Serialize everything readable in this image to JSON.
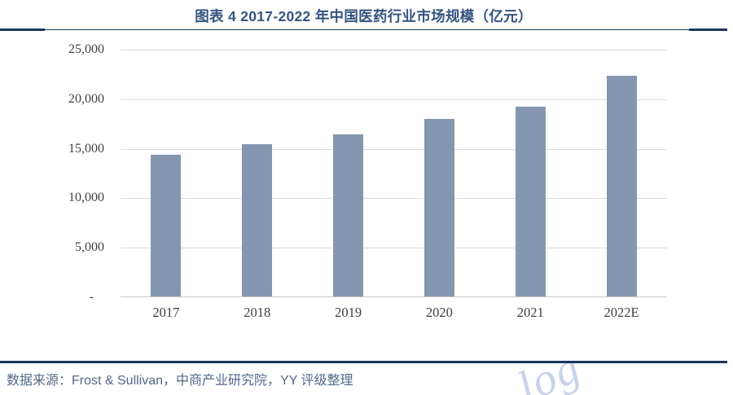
{
  "header": {
    "title": "图表 4 2017-2022 年中国医药行业市场规模（亿元）"
  },
  "footer": {
    "source": "数据来源：Frost & Sullivan，中商产业研究院，YY 评级整理"
  },
  "watermark": {
    "text": "log"
  },
  "colors": {
    "bar": "#8496B0",
    "rule": "#17365D",
    "title": "#35547F",
    "source_text": "#54688A",
    "gridline": "#DBDBDB",
    "axis_line": "#C6C6C6",
    "tick_label": "#404040",
    "watermark": "#C8D2EA"
  },
  "chart_data": {
    "type": "bar",
    "title": "图表 4 2017-2022 年中国医药行业市场规模（亿元）",
    "unit": "亿元",
    "categories": [
      "2017",
      "2018",
      "2019",
      "2020",
      "2021",
      "2022E"
    ],
    "values": [
      14300,
      15350,
      16400,
      17900,
      19200,
      22300
    ],
    "ylim": [
      0,
      25000
    ],
    "y_ticks": [
      {
        "value": 25000,
        "label": "25,000"
      },
      {
        "value": 20000,
        "label": "20,000"
      },
      {
        "value": 15000,
        "label": "15,000"
      },
      {
        "value": 10000,
        "label": "10,000"
      },
      {
        "value": 5000,
        "label": "5,000"
      },
      {
        "value": 0,
        "label": "-"
      }
    ],
    "grid": "horizontal",
    "legend": "none"
  }
}
